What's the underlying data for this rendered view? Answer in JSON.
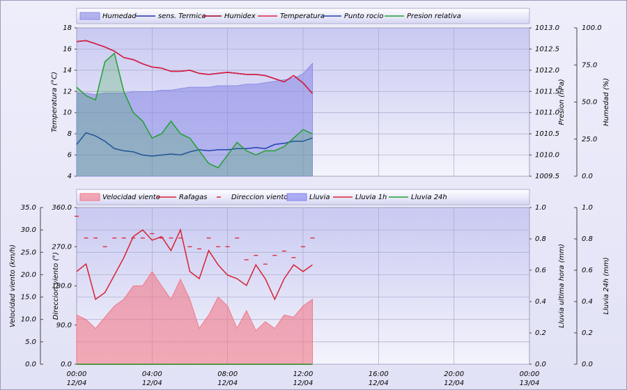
{
  "chart_data": [
    {
      "type": "line",
      "x": [
        0,
        0.5,
        1,
        1.5,
        2,
        2.5,
        3,
        3.5,
        4,
        4.5,
        5,
        5.5,
        6,
        6.5,
        7,
        7.5,
        8,
        8.5,
        9,
        9.5,
        10,
        10.5,
        11,
        11.5,
        12,
        12.5
      ],
      "xlim": [
        0,
        24
      ],
      "xticks": [
        0,
        4,
        8,
        12,
        16,
        20,
        24
      ],
      "grid": true,
      "ylabel": "Temperatura (°C)",
      "ylim": [
        4,
        18
      ],
      "yticks": [
        4,
        6,
        8,
        10,
        12,
        14,
        16,
        18
      ],
      "y2label": "Presion (hPa)",
      "y2lim": [
        1009.5,
        1013.0
      ],
      "y2ticks": [
        {
          "value": 1009.5,
          "label": "1009.5"
        },
        {
          "value": 1010,
          "label": "1010.0"
        },
        {
          "value": 1010.5,
          "label": "1010.5"
        },
        {
          "value": 1011,
          "label": "1011.0"
        },
        {
          "value": 1011.5,
          "label": "1011.5"
        },
        {
          "value": 1012,
          "label": "1012.0"
        },
        {
          "value": 1012.5,
          "label": "1012.5"
        },
        {
          "value": 1013,
          "label": "1013.0"
        }
      ],
      "y3label": "Humedad (%)",
      "y3lim": [
        0,
        100
      ],
      "y3ticks": [
        {
          "value": 0,
          "label": "0.0"
        },
        {
          "value": 25,
          "label": "25.0"
        },
        {
          "value": 50,
          "label": "50.0"
        },
        {
          "value": 75,
          "label": "75.0"
        },
        {
          "value": 100,
          "label": "100.0"
        }
      ],
      "series": [
        {
          "name": "Humedad",
          "kind": "area",
          "axis": "y3",
          "color": "#8c8ce6",
          "values": [
            56,
            56,
            55,
            56,
            56,
            56,
            57,
            57,
            57,
            58,
            58,
            59,
            60,
            60,
            60,
            61,
            61,
            61,
            62,
            62,
            63,
            64,
            65,
            66,
            69,
            76
          ]
        },
        {
          "name": "sens. Termica",
          "kind": "line",
          "axis": "y",
          "color": "#2030b0",
          "values": [
            16.7,
            16.8,
            16.5,
            16.2,
            15.8,
            15.2,
            15.0,
            14.6,
            14.3,
            14.2,
            13.9,
            13.9,
            14.0,
            13.7,
            13.6,
            13.7,
            13.8,
            13.7,
            13.6,
            13.6,
            13.5,
            13.2,
            12.9,
            13.5,
            12.8,
            11.8
          ]
        },
        {
          "name": "Humidex",
          "kind": "line",
          "axis": "y",
          "color": "#a00020",
          "values": [
            16.7,
            16.8,
            16.5,
            16.2,
            15.8,
            15.2,
            15.0,
            14.6,
            14.3,
            14.2,
            13.9,
            13.9,
            14.0,
            13.7,
            13.6,
            13.7,
            13.8,
            13.7,
            13.6,
            13.6,
            13.5,
            13.2,
            12.9,
            13.5,
            12.8,
            11.8
          ]
        },
        {
          "name": "Temperatura",
          "kind": "line",
          "axis": "y",
          "color": "#e02040",
          "values": [
            16.7,
            16.8,
            16.5,
            16.2,
            15.8,
            15.2,
            15.0,
            14.6,
            14.3,
            14.2,
            13.9,
            13.9,
            14.0,
            13.7,
            13.6,
            13.7,
            13.8,
            13.7,
            13.6,
            13.6,
            13.5,
            13.2,
            12.9,
            13.5,
            12.8,
            11.8
          ]
        },
        {
          "name": "Punto rocio",
          "kind": "line",
          "axis": "y",
          "color": "#2040b0",
          "values": [
            7.0,
            8.1,
            7.8,
            7.3,
            6.6,
            6.4,
            6.3,
            6.0,
            5.9,
            6.0,
            6.1,
            6.0,
            6.3,
            6.5,
            6.4,
            6.5,
            6.5,
            6.6,
            6.6,
            6.7,
            6.6,
            7.0,
            7.1,
            7.3,
            7.3,
            7.6
          ]
        },
        {
          "name": "Presion relativa",
          "kind": "line",
          "filled": true,
          "axis": "y2",
          "color": "#20a030",
          "values": [
            1011.6,
            1011.4,
            1011.3,
            1012.2,
            1012.4,
            1011.5,
            1011.0,
            1010.8,
            1010.4,
            1010.5,
            1010.8,
            1010.5,
            1010.4,
            1010.1,
            1009.8,
            1009.7,
            1010.0,
            1010.3,
            1010.1,
            1010.0,
            1010.1,
            1010.1,
            1010.2,
            1010.4,
            1010.6,
            1010.5
          ]
        }
      ]
    },
    {
      "type": "line",
      "x": [
        0,
        0.5,
        1,
        1.5,
        2,
        2.5,
        3,
        3.5,
        4,
        4.5,
        5,
        5.5,
        6,
        6.5,
        7,
        7.5,
        8,
        8.5,
        9,
        9.5,
        10,
        10.5,
        11,
        11.5,
        12,
        12.5
      ],
      "xlim": [
        0,
        24
      ],
      "xticks": [
        {
          "value": 0,
          "label": "00:00"
        },
        {
          "value": 4,
          "label": "04:00"
        },
        {
          "value": 8,
          "label": "08:00"
        },
        {
          "value": 12,
          "label": "12:00"
        },
        {
          "value": 16,
          "label": "16:00"
        },
        {
          "value": 20,
          "label": "20:00"
        },
        {
          "value": 24,
          "label": "00:00"
        }
      ],
      "xtick_dates": [
        "12/04",
        "12/04",
        "12/04",
        "12/04",
        "12/04",
        "12/04",
        "13/04"
      ],
      "grid": true,
      "ylabel": "Velocidad viento (km/h)",
      "ylim": [
        0,
        35
      ],
      "yticks": [
        {
          "value": 0,
          "label": "0.0"
        },
        {
          "value": 5,
          "label": "5.0"
        },
        {
          "value": 10,
          "label": "10.0"
        },
        {
          "value": 15,
          "label": "15.0"
        },
        {
          "value": 20,
          "label": "20.0"
        },
        {
          "value": 25,
          "label": "25.0"
        },
        {
          "value": 30,
          "label": "30.0"
        },
        {
          "value": 35,
          "label": "35.0"
        }
      ],
      "y2label": "Direccion viento (°)",
      "y2lim": [
        0,
        360
      ],
      "y2ticks": [
        {
          "value": 0,
          "label": "0.0"
        },
        {
          "value": 90,
          "label": "90.0"
        },
        {
          "value": 180,
          "label": "180.0"
        },
        {
          "value": 270,
          "label": "270.0"
        },
        {
          "value": 360,
          "label": "360.0"
        }
      ],
      "y3label": "Lluvia ultima hora (mm)",
      "y3lim": [
        0,
        1.0
      ],
      "y3ticks": [
        {
          "value": 0,
          "label": "0.0"
        },
        0.2,
        0.4,
        0.6,
        0.8,
        {
          "value": 1,
          "label": "1.0"
        }
      ],
      "y4label": "Lluvia 24h (mm)",
      "y4lim": [
        0,
        1.0
      ],
      "y4ticks": [
        {
          "value": 0,
          "label": "0.0"
        },
        0.2,
        0.4,
        0.6,
        0.8,
        {
          "value": 1,
          "label": "1.0"
        }
      ],
      "series": [
        {
          "name": "Velocidad viento",
          "kind": "area",
          "axis": "y",
          "color": "#f07888",
          "values": [
            11.0,
            10.0,
            8.0,
            10.5,
            13.0,
            14.5,
            17.5,
            17.5,
            20.7,
            17.5,
            14.5,
            19.0,
            14.5,
            8.0,
            11.0,
            15.0,
            13.0,
            8.0,
            12.0,
            7.5,
            9.5,
            8.0,
            11.0,
            10.5,
            13.0,
            14.5
          ]
        },
        {
          "name": "Rafagas",
          "kind": "line",
          "axis": "y",
          "color": "#d82030",
          "values": [
            20.7,
            22.4,
            14.5,
            16.0,
            19.9,
            23.8,
            28.5,
            30.0,
            27.7,
            28.5,
            25.4,
            30.0,
            20.7,
            19.1,
            25.4,
            22.2,
            19.9,
            19.1,
            17.6,
            22.2,
            19.1,
            14.5,
            19.1,
            22.2,
            20.7,
            22.2
          ]
        },
        {
          "name": "Direccion viento",
          "kind": "marker",
          "axis": "y2",
          "color": "#e02030",
          "values": [
            340,
            290,
            290,
            270,
            290,
            290,
            290,
            290,
            300,
            290,
            290,
            290,
            270,
            265,
            290,
            270,
            270,
            290,
            240,
            250,
            230,
            250,
            260,
            245,
            270,
            290
          ]
        },
        {
          "name": "Lluvia",
          "kind": "area",
          "axis": "y3",
          "color": "#8080f0",
          "values": [
            0,
            0,
            0,
            0,
            0,
            0,
            0,
            0,
            0,
            0,
            0,
            0,
            0,
            0,
            0,
            0,
            0,
            0,
            0,
            0,
            0,
            0,
            0,
            0,
            0,
            0
          ]
        },
        {
          "name": "Lluvia 1h",
          "kind": "line",
          "axis": "y3",
          "color": "#e02030",
          "values": [
            0,
            0,
            0,
            0,
            0,
            0,
            0,
            0,
            0,
            0,
            0,
            0,
            0,
            0,
            0,
            0,
            0,
            0,
            0,
            0,
            0,
            0,
            0,
            0,
            0,
            0
          ]
        },
        {
          "name": "Lluvia 24h",
          "kind": "line",
          "axis": "y4",
          "color": "#20a030",
          "values": [
            0,
            0,
            0,
            0,
            0,
            0,
            0,
            0,
            0,
            0,
            0,
            0,
            0,
            0,
            0,
            0,
            0,
            0,
            0,
            0,
            0,
            0,
            0,
            0,
            0,
            0
          ]
        }
      ]
    }
  ]
}
